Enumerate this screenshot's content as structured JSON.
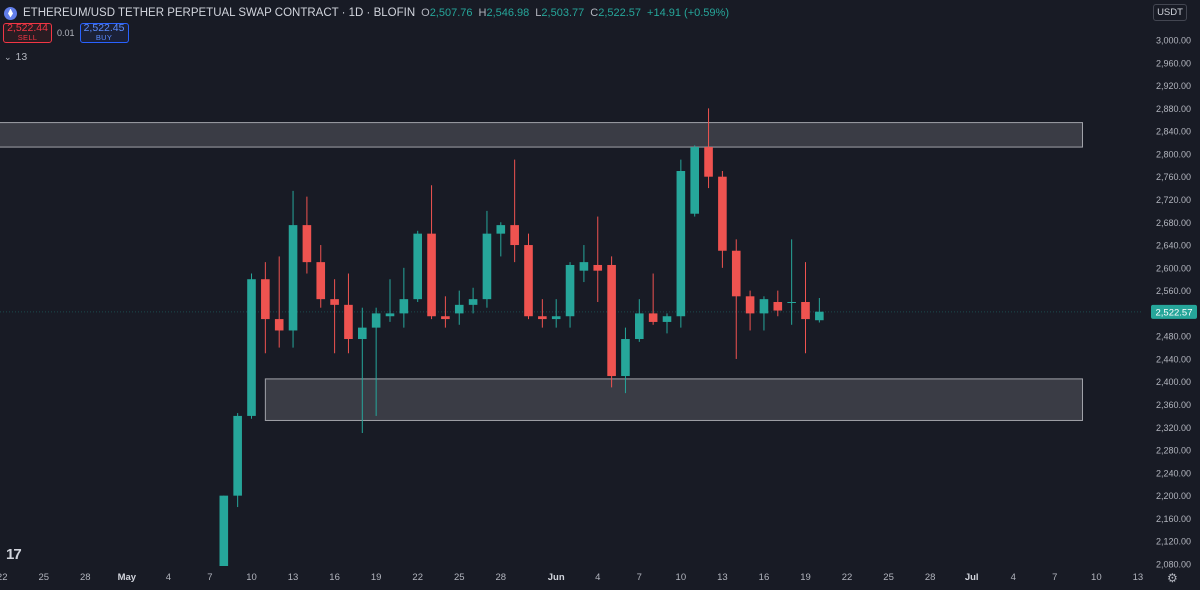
{
  "header": {
    "title": "ETHEREUM/USD TETHER PERPETUAL SWAP CONTRACT · 1D · BLOFIN",
    "ohlc": [
      {
        "k": "O",
        "v": "2,507.76"
      },
      {
        "k": "H",
        "v": "2,546.98"
      },
      {
        "k": "L",
        "v": "2,503.77"
      },
      {
        "k": "C",
        "v": "2,522.57"
      }
    ],
    "change": "+14.91 (+0.59%)"
  },
  "trade": {
    "sell_price": "2,522.44",
    "sell_label": "SELL",
    "spread": "0.01",
    "buy_price": "2,522.45",
    "buy_label": "BUY"
  },
  "indicator_count": "13",
  "currency": "USDT",
  "colors": {
    "up": "#26a69a",
    "down": "#ef5350",
    "zone": "#ffffff"
  },
  "icons": [
    "ethereum-icon",
    "chevron-down-icon",
    "tradingview-logo-icon",
    "gear-icon"
  ],
  "chart_data": {
    "type": "candlestick",
    "ylim": [
      2080,
      3020
    ],
    "last_price": 2522.57,
    "last_price_label": "2,522.57",
    "y_ticks": [
      2080,
      2120,
      2160,
      2200,
      2240,
      2280,
      2320,
      2360,
      2400,
      2440,
      2480,
      2520,
      2560,
      2600,
      2640,
      2680,
      2720,
      2760,
      2800,
      2840,
      2880,
      2920,
      2960,
      3000
    ],
    "y_tick_labels": [
      "2,080.00",
      "2,120.00",
      "2,160.00",
      "2,200.00",
      "2,240.00",
      "2,280.00",
      "2,320.00",
      "2,360.00",
      "2,400.00",
      "2,440.00",
      "2,480.00",
      "2,520.00",
      "2,560.00",
      "2,600.00",
      "2,640.00",
      "2,680.00",
      "2,720.00",
      "2,760.00",
      "2,800.00",
      "2,840.00",
      "2,880.00",
      "2,920.00",
      "2,960.00",
      "3,000.00"
    ],
    "x_ticks": [
      {
        "day": -2,
        "label": "22"
      },
      {
        "day": 1,
        "label": "25"
      },
      {
        "day": 4,
        "label": "28"
      },
      {
        "day": 7,
        "label": "May"
      },
      {
        "day": 10,
        "label": "4"
      },
      {
        "day": 13,
        "label": "7"
      },
      {
        "day": 16,
        "label": "10"
      },
      {
        "day": 19,
        "label": "13"
      },
      {
        "day": 22,
        "label": "16"
      },
      {
        "day": 25,
        "label": "19"
      },
      {
        "day": 28,
        "label": "22"
      },
      {
        "day": 31,
        "label": "25"
      },
      {
        "day": 34,
        "label": "28"
      },
      {
        "day": 38,
        "label": "Jun"
      },
      {
        "day": 41,
        "label": "4"
      },
      {
        "day": 44,
        "label": "7"
      },
      {
        "day": 47,
        "label": "10"
      },
      {
        "day": 50,
        "label": "13"
      },
      {
        "day": 53,
        "label": "16"
      },
      {
        "day": 56,
        "label": "19"
      },
      {
        "day": 59,
        "label": "22"
      },
      {
        "day": 62,
        "label": "25"
      },
      {
        "day": 65,
        "label": "28"
      },
      {
        "day": 68,
        "label": "Jul"
      },
      {
        "day": 71,
        "label": "4"
      },
      {
        "day": 74,
        "label": "7"
      },
      {
        "day": 77,
        "label": "10"
      },
      {
        "day": 80,
        "label": "13"
      }
    ],
    "zones": [
      {
        "from_day": -6,
        "to_day": 76,
        "top": 2855,
        "bottom": 2812
      },
      {
        "from_day": 17,
        "to_day": 76,
        "top": 2405,
        "bottom": 2332
      }
    ],
    "candles": [
      {
        "d": 14,
        "o": 2060,
        "h": 2200,
        "l": 2050,
        "c": 2200
      },
      {
        "d": 15,
        "o": 2200,
        "h": 2345,
        "l": 2180,
        "c": 2340
      },
      {
        "d": 16,
        "o": 2340,
        "h": 2590,
        "l": 2335,
        "c": 2580
      },
      {
        "d": 17,
        "o": 2580,
        "h": 2610,
        "l": 2450,
        "c": 2510
      },
      {
        "d": 18,
        "o": 2510,
        "h": 2620,
        "l": 2460,
        "c": 2490
      },
      {
        "d": 19,
        "o": 2490,
        "h": 2735,
        "l": 2460,
        "c": 2675
      },
      {
        "d": 20,
        "o": 2675,
        "h": 2725,
        "l": 2590,
        "c": 2610
      },
      {
        "d": 21,
        "o": 2610,
        "h": 2640,
        "l": 2530,
        "c": 2545
      },
      {
        "d": 22,
        "o": 2545,
        "h": 2580,
        "l": 2450,
        "c": 2535
      },
      {
        "d": 23,
        "o": 2535,
        "h": 2590,
        "l": 2450,
        "c": 2475
      },
      {
        "d": 24,
        "o": 2475,
        "h": 2530,
        "l": 2310,
        "c": 2495
      },
      {
        "d": 25,
        "o": 2495,
        "h": 2530,
        "l": 2340,
        "c": 2520
      },
      {
        "d": 26,
        "o": 2515,
        "h": 2580,
        "l": 2505,
        "c": 2520
      },
      {
        "d": 27,
        "o": 2520,
        "h": 2600,
        "l": 2495,
        "c": 2545
      },
      {
        "d": 28,
        "o": 2545,
        "h": 2665,
        "l": 2540,
        "c": 2660
      },
      {
        "d": 29,
        "o": 2660,
        "h": 2745,
        "l": 2510,
        "c": 2515
      },
      {
        "d": 30,
        "o": 2515,
        "h": 2550,
        "l": 2495,
        "c": 2510
      },
      {
        "d": 31,
        "o": 2520,
        "h": 2560,
        "l": 2500,
        "c": 2535
      },
      {
        "d": 32,
        "o": 2535,
        "h": 2565,
        "l": 2520,
        "c": 2545
      },
      {
        "d": 33,
        "o": 2545,
        "h": 2700,
        "l": 2530,
        "c": 2660
      },
      {
        "d": 34,
        "o": 2660,
        "h": 2680,
        "l": 2620,
        "c": 2675
      },
      {
        "d": 35,
        "o": 2675,
        "h": 2790,
        "l": 2610,
        "c": 2640
      },
      {
        "d": 36,
        "o": 2640,
        "h": 2660,
        "l": 2510,
        "c": 2515
      },
      {
        "d": 37,
        "o": 2515,
        "h": 2545,
        "l": 2495,
        "c": 2510
      },
      {
        "d": 38,
        "o": 2510,
        "h": 2545,
        "l": 2495,
        "c": 2515
      },
      {
        "d": 39,
        "o": 2515,
        "h": 2610,
        "l": 2495,
        "c": 2605
      },
      {
        "d": 40,
        "o": 2595,
        "h": 2640,
        "l": 2575,
        "c": 2610
      },
      {
        "d": 41,
        "o": 2605,
        "h": 2690,
        "l": 2540,
        "c": 2595
      },
      {
        "d": 42,
        "o": 2605,
        "h": 2620,
        "l": 2390,
        "c": 2410
      },
      {
        "d": 43,
        "o": 2410,
        "h": 2495,
        "l": 2380,
        "c": 2475
      },
      {
        "d": 44,
        "o": 2475,
        "h": 2545,
        "l": 2470,
        "c": 2520
      },
      {
        "d": 45,
        "o": 2520,
        "h": 2590,
        "l": 2500,
        "c": 2505
      },
      {
        "d": 46,
        "o": 2505,
        "h": 2520,
        "l": 2485,
        "c": 2515
      },
      {
        "d": 47,
        "o": 2515,
        "h": 2790,
        "l": 2495,
        "c": 2770
      },
      {
        "d": 48,
        "o": 2695,
        "h": 2815,
        "l": 2690,
        "c": 2812
      },
      {
        "d": 49,
        "o": 2812,
        "h": 2880,
        "l": 2740,
        "c": 2760
      },
      {
        "d": 50,
        "o": 2760,
        "h": 2770,
        "l": 2600,
        "c": 2630
      },
      {
        "d": 51,
        "o": 2630,
        "h": 2650,
        "l": 2440,
        "c": 2550
      },
      {
        "d": 52,
        "o": 2550,
        "h": 2560,
        "l": 2490,
        "c": 2520
      },
      {
        "d": 53,
        "o": 2520,
        "h": 2550,
        "l": 2490,
        "c": 2545
      },
      {
        "d": 54,
        "o": 2540,
        "h": 2560,
        "l": 2515,
        "c": 2525
      },
      {
        "d": 55,
        "o": 2540,
        "h": 2650,
        "l": 2500,
        "c": 2540
      },
      {
        "d": 56,
        "o": 2540,
        "h": 2610,
        "l": 2450,
        "c": 2510
      },
      {
        "d": 57,
        "o": 2508,
        "h": 2547,
        "l": 2504,
        "c": 2523
      }
    ]
  }
}
